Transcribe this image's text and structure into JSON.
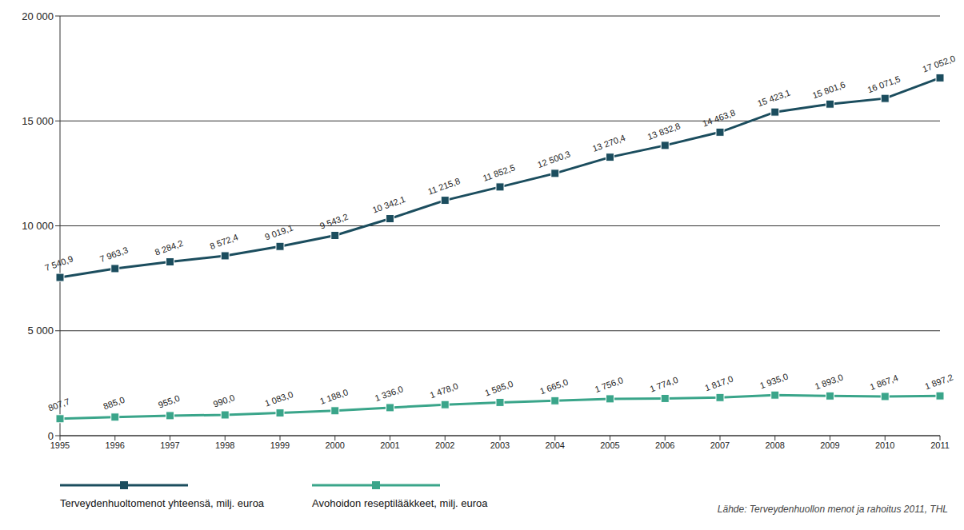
{
  "chart_data": {
    "type": "line",
    "categories": [
      "1995",
      "1996",
      "1997",
      "1998",
      "1999",
      "2000",
      "2001",
      "2002",
      "2003",
      "2004",
      "2005",
      "2006",
      "2007",
      "2008",
      "2009",
      "2010",
      "2011"
    ],
    "series": [
      {
        "name": "Terveydenhuoltomenot yhteensä, milj. euroa",
        "color": "#1b4d5e",
        "marker": "square",
        "values": [
          7540.9,
          7963.3,
          8284.2,
          8572.4,
          9019.1,
          9543.2,
          10342.1,
          11215.8,
          11852.5,
          12500.3,
          13270.4,
          13832.8,
          14463.8,
          15423.1,
          15801.6,
          16071.5,
          17052.0
        ],
        "value_labels": [
          "7 540,9",
          "7 963,3",
          "8 284,2",
          "8 572,4",
          "9 019,1",
          "9 543,2",
          "10 342,1",
          "11 215,8",
          "11 852,5",
          "12 500,3",
          "13 270,4",
          "13 832,8",
          "14 463,8",
          "15 423,1",
          "15 801,6",
          "16 071,5",
          "17 052,0"
        ]
      },
      {
        "name": "Avohoidon reseptilääkkeet, milj. euroa",
        "color": "#3aa58a",
        "marker": "square",
        "values": [
          807.7,
          885.0,
          955.0,
          990.0,
          1083.0,
          1188.0,
          1336.0,
          1478.0,
          1585.0,
          1665.0,
          1756.0,
          1774.0,
          1817.0,
          1935.0,
          1893.0,
          1867.4,
          1897.2
        ],
        "value_labels": [
          "807,7",
          "885,0",
          "955,0",
          "990,0",
          "1 083,0",
          "1 188,0",
          "1 336,0",
          "1 478,0",
          "1 585,0",
          "1 665,0",
          "1 756,0",
          "1 774,0",
          "1 817,0",
          "1 935,0",
          "1 893,0",
          "1 867,4",
          "1 897,2"
        ]
      }
    ],
    "ylim": [
      0,
      20000
    ],
    "yticks": [
      0,
      {
        "value": 5000,
        "label": "5 000"
      },
      {
        "value": 10000,
        "label": "10 000"
      },
      {
        "value": 15000,
        "label": "15 000"
      },
      {
        "value": 20000,
        "label": "20 000"
      }
    ],
    "grid": true,
    "legend": "bottom",
    "data_labels": true,
    "annotations": [
      "Lähde: Terveydenhuollon menot ja rahoitus 2011, THL"
    ]
  }
}
